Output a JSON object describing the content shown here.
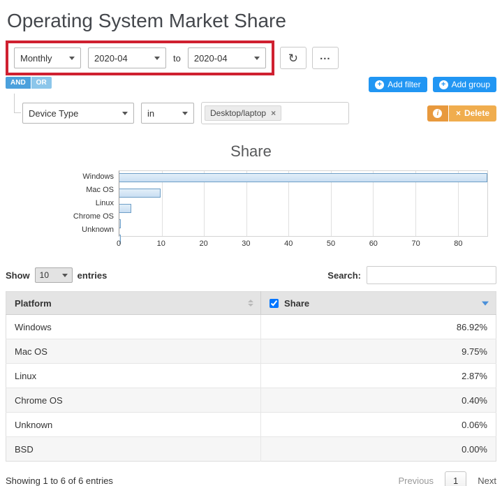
{
  "header": {
    "title": "Operating System Market Share"
  },
  "controls": {
    "period_value": "Monthly",
    "from_value": "2020-04",
    "to_label": "to",
    "to_value": "2020-04",
    "refresh_icon": "↻",
    "more_label": "..."
  },
  "filterbar": {
    "and_label": "AND",
    "or_label": "OR",
    "plus_icon": "+",
    "add_filter_label": "Add filter",
    "add_group_label": "Add group"
  },
  "filter_row": {
    "field_value": "Device Type",
    "operator_value": "in",
    "chip_value": "Desktop/laptop",
    "chip_remove": "×",
    "info_icon": "i",
    "delete_x": "×",
    "delete_label": "Delete"
  },
  "chart_data": {
    "type": "bar",
    "orientation": "horizontal",
    "title": "Share",
    "categories": [
      "Windows",
      "Mac OS",
      "Linux",
      "Chrome OS",
      "Unknown"
    ],
    "values": [
      86.92,
      9.75,
      2.87,
      0.4,
      0.06
    ],
    "xlim": [
      0,
      87
    ],
    "xticks": [
      0,
      10,
      20,
      30,
      40,
      50,
      60,
      70,
      80
    ],
    "grid": true,
    "legend": "none",
    "bar_fill": "#c9def2",
    "bar_border": "#6d9ec7"
  },
  "table": {
    "show_label": "Show",
    "show_value": "10",
    "entries_label": "entries",
    "search_label": "Search:",
    "columns": [
      "Platform",
      "Share"
    ],
    "rows": [
      {
        "platform": "Windows",
        "share": "86.92%"
      },
      {
        "platform": "Mac OS",
        "share": "9.75%"
      },
      {
        "platform": "Linux",
        "share": "2.87%"
      },
      {
        "platform": "Chrome OS",
        "share": "0.40%"
      },
      {
        "platform": "Unknown",
        "share": "0.06%"
      },
      {
        "platform": "BSD",
        "share": "0.00%"
      }
    ],
    "footer_text": "Showing 1 to 6 of 6 entries",
    "previous_label": "Previous",
    "current_page": "1",
    "next_label": "Next"
  },
  "colors": {
    "annotation_red": "#cf2030",
    "primary_blue": "#2196f3",
    "warning_orange": "#f0ad4e"
  }
}
